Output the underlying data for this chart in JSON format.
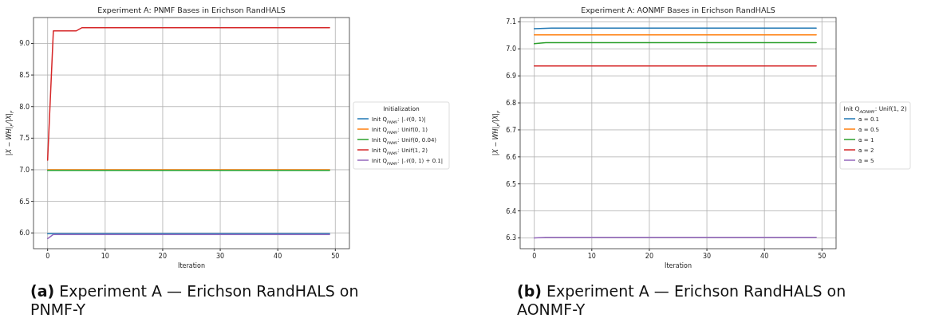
{
  "chart_data": [
    {
      "type": "line",
      "title": "Experiment A: PNMF Bases in Erichson RandHALS",
      "xlabel": "Iteration",
      "ylabel": "|X − WH|$_{F}$/|X|$_{F}$",
      "legend_title": "Initialization",
      "legend": "right",
      "grid": true,
      "xlim": [
        -2.45,
        52.45
      ],
      "xticks": [
        0,
        10,
        20,
        30,
        40,
        50
      ],
      "ylim": [
        5.75,
        9.41
      ],
      "yticks": [
        {
          "value": 6,
          "label": "6.0"
        },
        6.5,
        {
          "value": 7,
          "label": "7.0"
        },
        7.5,
        {
          "value": 8,
          "label": "8.0"
        },
        8.5,
        {
          "value": 9,
          "label": "9.0"
        }
      ],
      "series": [
        {
          "name": "Init Q$_{PNMF}$: |𝒩(0, 1)|",
          "color": "#1f77b4",
          "x": [
            0,
            49
          ],
          "values": [
            5.99,
            5.99
          ]
        },
        {
          "name": "Init Q$_{PNMF}$: Unif(0, 1)",
          "color": "#ff7f0e",
          "x": [
            0,
            49
          ],
          "values": [
            7.0,
            7.0
          ]
        },
        {
          "name": "Init Q$_{PNMF}$: Unif(0, 0.04)",
          "color": "#2ca02c",
          "x": [
            0,
            49
          ],
          "values": [
            6.99,
            6.99
          ]
        },
        {
          "name": "Init Q$_{PNMF}$: Unif(1, 2)",
          "color": "#d62728",
          "x": [
            0,
            1,
            5,
            6,
            49
          ],
          "values": [
            7.15,
            9.2,
            9.2,
            9.25,
            9.25
          ]
        },
        {
          "name": "Init Q$_{PNMF}$: |𝒩(0, 1) + 0.1|",
          "color": "#9467bd",
          "x": [
            0,
            1,
            49
          ],
          "values": [
            5.91,
            5.975,
            5.975
          ]
        }
      ],
      "annotations": [
        "(a) Experiment A — Erichson RandHALS on PNMF-Y"
      ]
    },
    {
      "type": "line",
      "title": "Experiment A: AONMF Bases in Erichson RandHALS",
      "xlabel": "Iteration",
      "ylabel": "|X − WH|$_{F}$/|X|$_{F}$",
      "legend_title": "Init Q$_{AONMF}$: Unif(1, 2)",
      "legend": "right",
      "grid": true,
      "xlim": [
        -2.45,
        52.45
      ],
      "xticks": [
        0,
        10,
        20,
        30,
        40,
        50
      ],
      "ylim": [
        6.26,
        7.116
      ],
      "yticks": [
        6.3,
        6.4,
        6.5,
        6.6,
        6.7,
        6.8,
        6.9,
        {
          "value": 7,
          "label": "7.0"
        },
        7.1
      ],
      "series": [
        {
          "name": "α = 0.1",
          "color": "#1f77b4",
          "x": [
            0,
            3,
            49
          ],
          "values": [
            7.075,
            7.077,
            7.077
          ]
        },
        {
          "name": "α = 0.5",
          "color": "#ff7f0e",
          "x": [
            0,
            49
          ],
          "values": [
            7.052,
            7.052
          ]
        },
        {
          "name": "α = 1",
          "color": "#2ca02c",
          "x": [
            0,
            2,
            49
          ],
          "values": [
            7.019,
            7.023,
            7.023
          ]
        },
        {
          "name": "α = 2",
          "color": "#d62728",
          "x": [
            0,
            49
          ],
          "values": [
            6.937,
            6.937
          ]
        },
        {
          "name": "α = 5",
          "color": "#9467bd",
          "x": [
            0,
            2,
            49
          ],
          "values": [
            6.3,
            6.302,
            6.302
          ]
        }
      ],
      "annotations": [
        "(b) Experiment A — Erichson RandHALS on AONMF-Y"
      ]
    }
  ]
}
